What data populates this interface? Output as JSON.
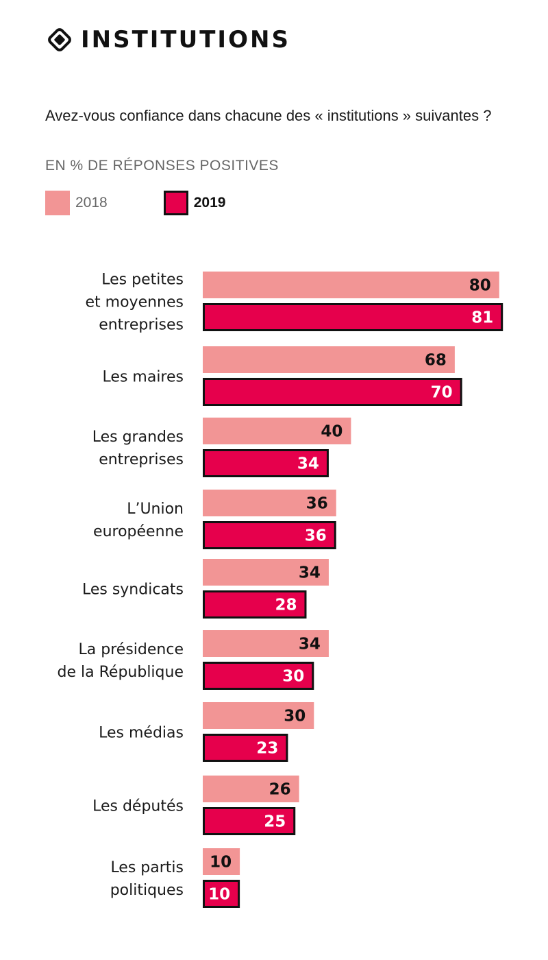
{
  "header": {
    "icon": "diamond-target-icon",
    "title": "INSTITUTIONS"
  },
  "question": "Avez-vous confiance dans chacune des « institutions » suivantes ?",
  "unit_label": "EN % DE RÉPONSES POSITIVES",
  "colors": {
    "series_2018": "#f29595",
    "series_2019": "#e6004c",
    "series_2019_border": "#111111",
    "label_dark": "#111111",
    "label_light": "#ffffff"
  },
  "legend": [
    {
      "label": "2018"
    },
    {
      "label": "2019"
    }
  ],
  "chart_data": {
    "type": "bar",
    "orientation": "horizontal",
    "title": "INSTITUTIONS",
    "subtitle": "Avez-vous confiance dans chacune des « institutions » suivantes ?",
    "ylabel": "",
    "xlabel": "EN % DE RÉPONSES POSITIVES",
    "xlim": [
      0,
      100
    ],
    "grid": false,
    "legend_position": "top-left",
    "categories": [
      [
        "Les petites",
        "et moyennes",
        "entreprises"
      ],
      [
        "Les maires"
      ],
      [
        "Les grandes",
        "entreprises"
      ],
      [
        "L’Union",
        "européenne"
      ],
      [
        "Les syndicats"
      ],
      [
        "La présidence",
        "de la République"
      ],
      [
        "Les médias"
      ],
      [
        "Les députés"
      ],
      [
        "Les partis",
        "politiques"
      ]
    ],
    "series": [
      {
        "name": "2018",
        "values": [
          80,
          68,
          40,
          36,
          34,
          34,
          30,
          26,
          10
        ]
      },
      {
        "name": "2019",
        "values": [
          81,
          70,
          34,
          36,
          28,
          30,
          23,
          25,
          10
        ]
      }
    ]
  }
}
